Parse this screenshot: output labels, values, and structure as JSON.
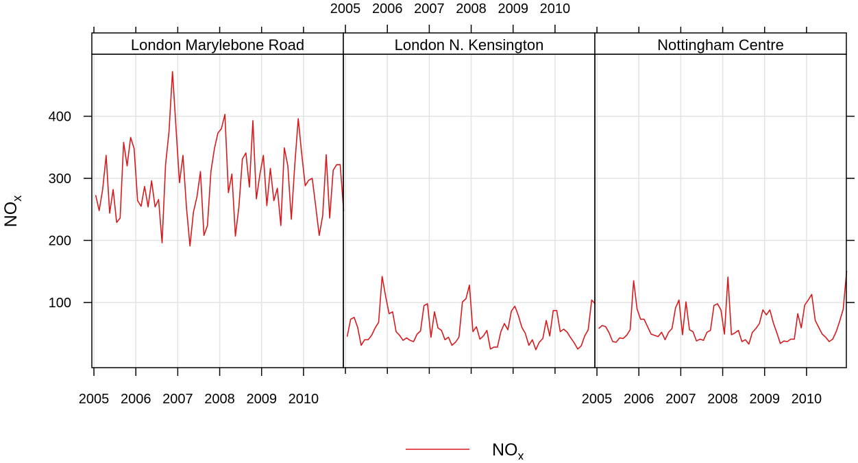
{
  "chart_data": {
    "type": "line",
    "ylabel": "NO",
    "ylabel_sub": "x",
    "yticks": [
      100,
      200,
      300,
      400
    ],
    "ylim": [
      -5,
      500
    ],
    "xticks": [
      "2005",
      "2006",
      "2007",
      "2008",
      "2009",
      "2010"
    ],
    "xlim": [
      2004.95,
      2010.95
    ],
    "legend": {
      "label": "NO",
      "label_sub": "x",
      "position": "bottom",
      "color": "#d7191c"
    },
    "grid": true,
    "line_color": "#d7191c",
    "panels": [
      {
        "name": "London Marylebone Road",
        "values": [
          273,
          248,
          282,
          337,
          244,
          282,
          229,
          236,
          358,
          320,
          366,
          348,
          264,
          255,
          287,
          254,
          296,
          254,
          266,
          196,
          322,
          375,
          472,
          382,
          293,
          337,
          253,
          191,
          246,
          270,
          311,
          208,
          224,
          311,
          348,
          373,
          380,
          403,
          277,
          307,
          207,
          254,
          331,
          341,
          286,
          393,
          267,
          306,
          337,
          256,
          316,
          264,
          284,
          224,
          349,
          320,
          234,
          321,
          396,
          339,
          288,
          297,
          300,
          255,
          208,
          240,
          338,
          236,
          313,
          322,
          322,
          247
        ]
      },
      {
        "name": "London N. Kensington",
        "values": [
          45,
          73,
          76,
          60,
          31,
          40,
          40,
          47,
          59,
          68,
          142,
          110,
          82,
          85,
          53,
          47,
          39,
          43,
          39,
          37,
          49,
          54,
          95,
          98,
          44,
          85,
          59,
          55,
          40,
          44,
          31,
          36,
          44,
          101,
          106,
          128,
          53,
          61,
          41,
          46,
          55,
          25,
          28,
          28,
          53,
          66,
          56,
          86,
          94,
          79,
          60,
          50,
          31,
          40,
          24,
          36,
          42,
          71,
          46,
          87,
          87,
          53,
          57,
          52,
          43,
          35,
          25,
          30,
          46,
          56,
          104,
          98
        ]
      },
      {
        "name": "Nottingham Centre",
        "values": [
          58,
          63,
          61,
          51,
          37,
          36,
          43,
          42,
          47,
          56,
          135,
          89,
          73,
          73,
          61,
          49,
          47,
          45,
          52,
          40,
          52,
          58,
          91,
          104,
          48,
          101,
          56,
          53,
          38,
          41,
          39,
          52,
          55,
          95,
          98,
          88,
          49,
          141,
          48,
          51,
          55,
          37,
          40,
          33,
          52,
          58,
          66,
          88,
          80,
          88,
          67,
          51,
          34,
          38,
          37,
          41,
          41,
          82,
          59,
          96,
          104,
          113,
          71,
          60,
          49,
          44,
          37,
          41,
          53,
          70,
          89,
          151
        ]
      }
    ]
  }
}
